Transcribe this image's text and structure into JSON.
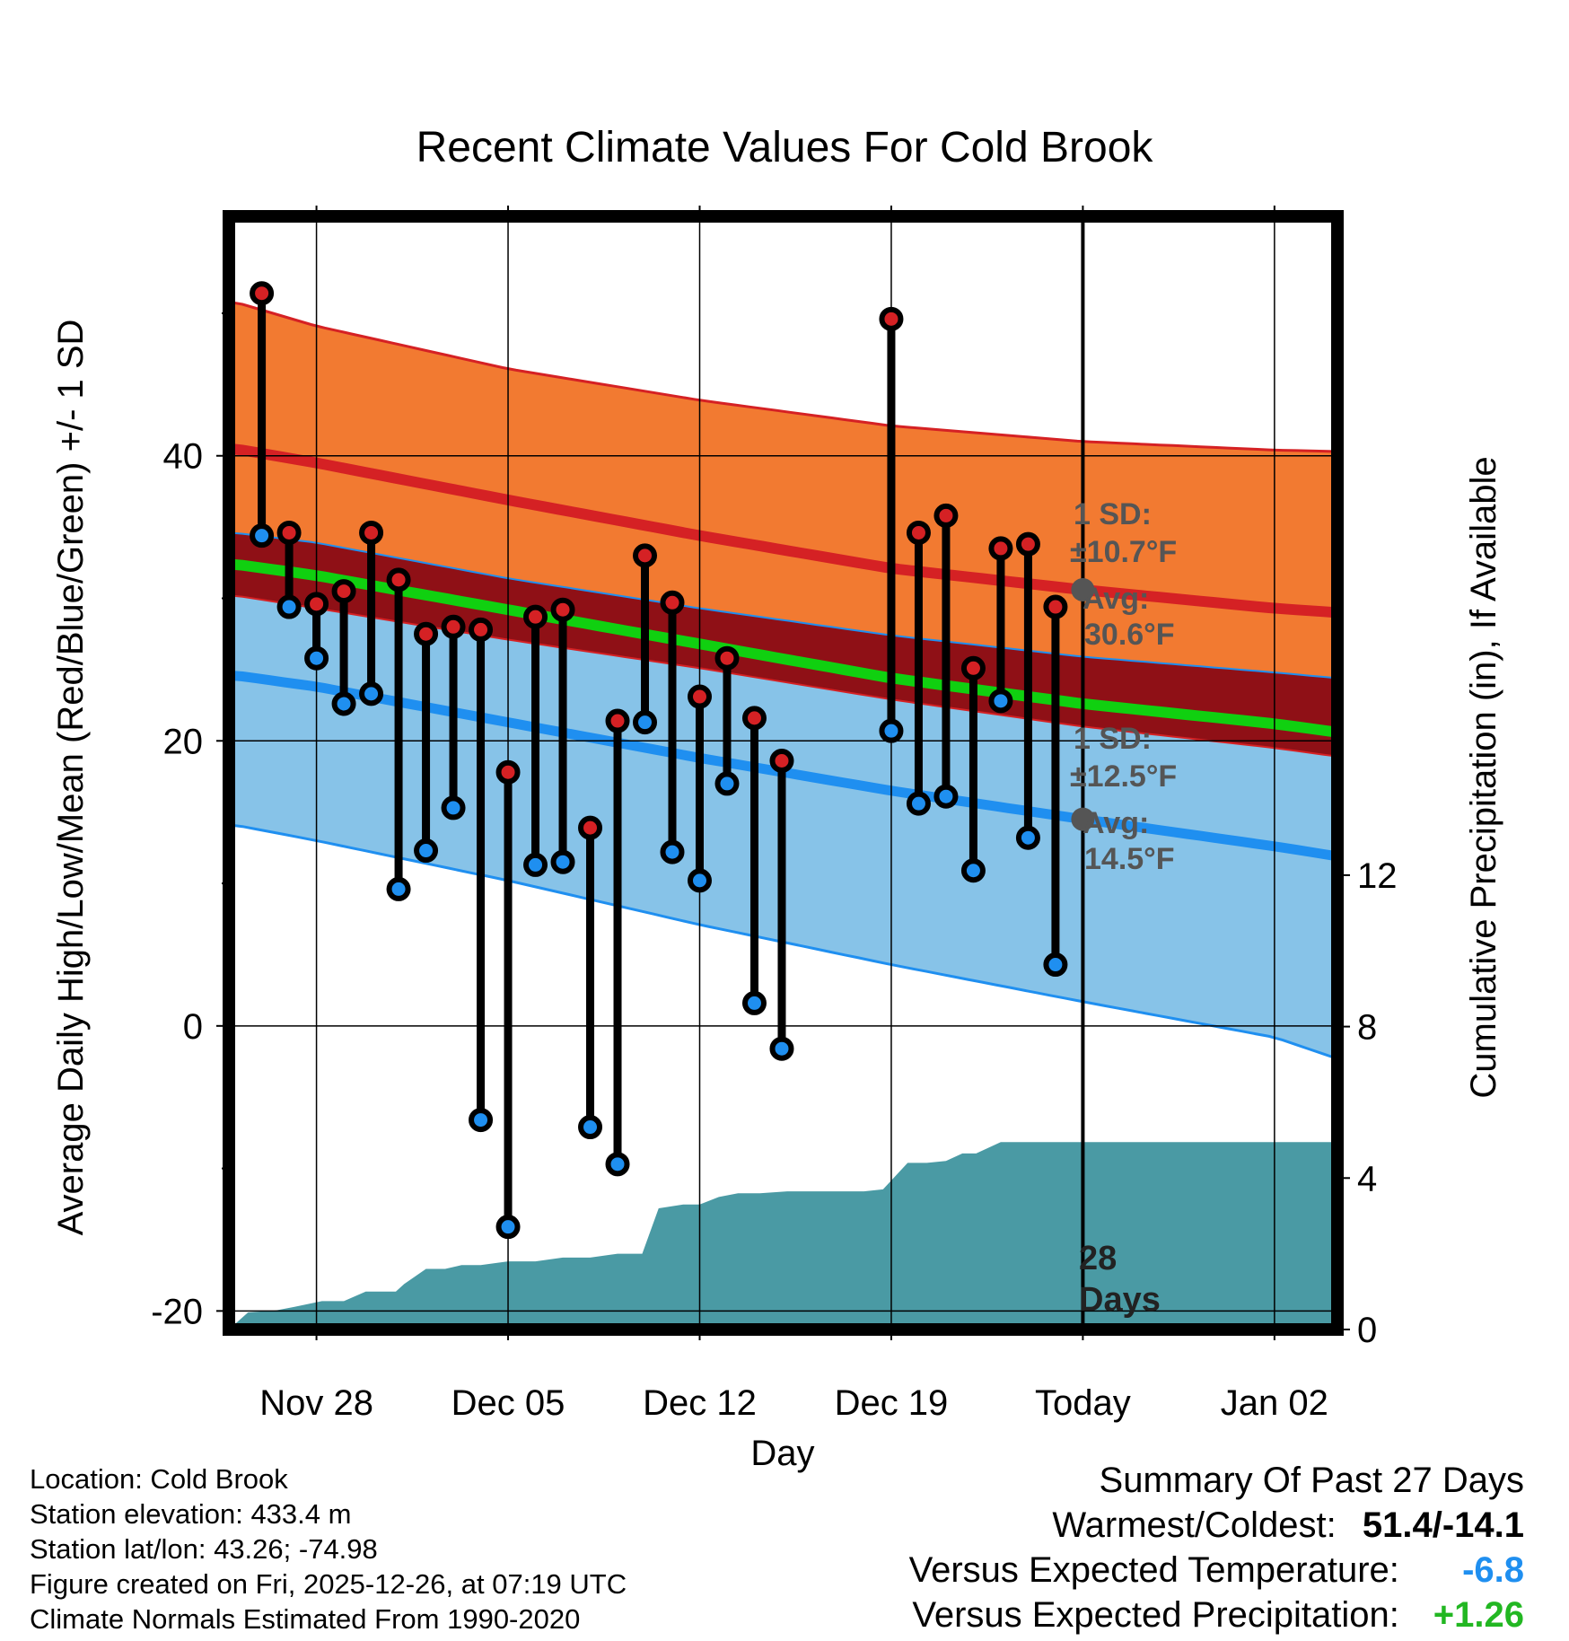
{
  "chart_data": {
    "type": "line",
    "title": "Recent Climate Values For Cold Brook",
    "xlabel": "Day",
    "ylabel_left": "Average Daily High/Low/Mean (Red/Blue/Green) +/- 1 SD",
    "ylabel_right": "Cumulative Precipitation (in), If Available",
    "xlim": [
      -3.2,
      37.3
    ],
    "ylim": [
      -21.3,
      56.8
    ],
    "y2lim": [
      0,
      29.4
    ],
    "yticks": [
      "-20",
      "0",
      "20",
      "40"
    ],
    "y2ticks": [
      "0",
      "4",
      "8",
      "12"
    ],
    "x_ticks": [
      {
        "day": 0,
        "label": "Nov 28"
      },
      {
        "day": 7,
        "label": "Dec 05"
      },
      {
        "day": 14,
        "label": "Dec 12"
      },
      {
        "day": 21,
        "label": "Dec 19"
      },
      {
        "day": 28,
        "label": "Today"
      },
      {
        "day": 35,
        "label": "Jan 02"
      }
    ],
    "normals": {
      "x": [
        -3,
        0,
        7,
        14,
        21,
        28,
        35,
        37.3
      ],
      "high_upper": [
        50.8,
        49.1,
        46.1,
        43.9,
        42.1,
        41.0,
        40.4,
        40.3
      ],
      "high_avg": [
        40.5,
        39.5,
        36.9,
        34.4,
        32.1,
        30.6,
        29.3,
        29.0
      ],
      "high_lower": [
        34.6,
        33.9,
        31.4,
        29.3,
        27.4,
        25.9,
        24.8,
        24.4
      ],
      "mean_avg": [
        32.4,
        31.6,
        29.2,
        26.8,
        24.4,
        22.6,
        21.2,
        20.6
      ],
      "low_upper": [
        30.2,
        29.3,
        27.1,
        25.1,
        22.9,
        21.0,
        19.5,
        18.9
      ],
      "low_avg": [
        24.6,
        23.8,
        21.3,
        18.8,
        16.5,
        14.5,
        12.6,
        11.9
      ],
      "low_lower": [
        14.1,
        13.0,
        10.2,
        7.1,
        4.3,
        1.7,
        -0.8,
        -2.3
      ]
    },
    "daily": {
      "day": [
        -2,
        -1,
        0,
        1,
        2,
        3,
        4,
        5,
        6,
        7,
        8,
        9,
        10,
        11,
        12,
        13,
        14,
        15,
        16,
        17,
        21,
        22,
        23,
        24,
        25,
        26,
        27
      ],
      "high": [
        51.4,
        34.6,
        29.6,
        30.5,
        34.6,
        31.3,
        27.5,
        28.0,
        27.8,
        17.8,
        28.7,
        29.2,
        13.9,
        21.4,
        33.0,
        29.7,
        23.1,
        25.8,
        21.6,
        18.6,
        49.6,
        34.6,
        35.8,
        25.1,
        33.5,
        33.8,
        29.4
      ],
      "low": [
        34.4,
        29.4,
        25.8,
        22.6,
        23.3,
        9.6,
        12.3,
        15.3,
        -6.6,
        -14.1,
        11.3,
        11.5,
        -7.1,
        -9.7,
        21.3,
        12.2,
        10.2,
        17.0,
        1.6,
        -1.6,
        20.7,
        15.6,
        16.1,
        10.9,
        22.8,
        13.2,
        4.3
      ]
    },
    "precip_cum": {
      "x": [
        -3.2,
        -2.5,
        -1.5,
        -0.8,
        0.2,
        1,
        1.8,
        2.9,
        3.2,
        4,
        4.7,
        5.3,
        6,
        7,
        8,
        9,
        10,
        11,
        11.9,
        12.5,
        13.4,
        14,
        14.7,
        15.4,
        16.2,
        17.2,
        18.3,
        19.1,
        20,
        20.7,
        21.6,
        22.3,
        23,
        23.6,
        24.1,
        25,
        26,
        28,
        37.3
      ],
      "y": [
        0,
        0.45,
        0.5,
        0.6,
        0.75,
        0.75,
        1.0,
        1.0,
        1.2,
        1.6,
        1.6,
        1.7,
        1.7,
        1.8,
        1.8,
        1.9,
        1.9,
        2.0,
        2.0,
        3.2,
        3.3,
        3.3,
        3.5,
        3.6,
        3.6,
        3.65,
        3.65,
        3.65,
        3.65,
        3.7,
        4.4,
        4.4,
        4.45,
        4.65,
        4.65,
        4.95,
        4.95,
        4.95,
        4.95
      ]
    },
    "today_day": 28
  },
  "annotations": {
    "high_sd_1": "1 SD:",
    "high_sd_2": "±10.7°F",
    "high_avg_1": "Avg:",
    "high_avg_2": "30.6°F",
    "low_sd_1": "1 SD:",
    "low_sd_2": "±12.5°F",
    "low_avg_1": "Avg:",
    "low_avg_2": "14.5°F",
    "days_1": "28",
    "days_2": "Days"
  },
  "info": {
    "location": "Location: Cold Brook",
    "elevation": "Station elevation: 433.4 m",
    "latlon": "Station lat/lon: 43.26; -74.98",
    "created": "Figure created on Fri, 2025-12-26, at 07:19 UTC",
    "normals": "Climate Normals Estimated From 1990-2020"
  },
  "summary": {
    "title": "Summary Of Past 27 Days",
    "warm_label": "Warmest/Coldest:",
    "warm_value": "51.4/-14.1",
    "temp_label": "Versus Expected Temperature:",
    "temp_value": "-6.8",
    "prec_label": "Versus Expected Precipitation:",
    "prec_value": "+1.26"
  },
  "colors": {
    "high_band": "#f27a31",
    "high_line": "#d52124",
    "overlap_band": "#8f1016",
    "mean_line": "#10d010",
    "low_band": "#87c3e8",
    "low_line": "#1f8ff0",
    "precip": "#4a9aa4",
    "temp_value": "#1f8ff0",
    "prec_value": "#22b722"
  }
}
